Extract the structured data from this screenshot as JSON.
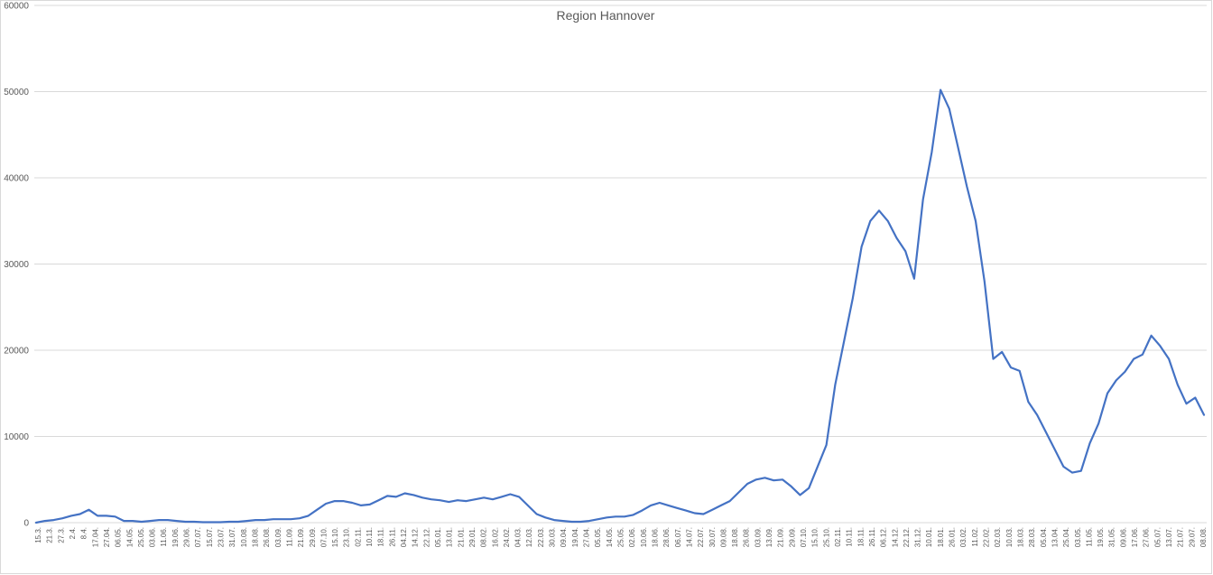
{
  "chart_data": {
    "type": "line",
    "title": "Region Hannover",
    "xlabel": "",
    "ylabel": "",
    "ylim": [
      0,
      60000
    ],
    "y_ticks": [
      "0",
      "10000",
      "20000",
      "30000",
      "40000",
      "50000",
      "60000"
    ],
    "grid": true,
    "legend": "none",
    "colors": {
      "line": "#4472c4",
      "grid": "#d9d9d9",
      "text": "#595959"
    },
    "x_tick_labels": [
      "15.3.",
      "21.3.",
      "27.3.",
      "2.4.",
      "8.4.",
      "17.04.",
      "27.04.",
      "06.05.",
      "14.05.",
      "25.05.",
      "03.06.",
      "11.06.",
      "19.06.",
      "29.06.",
      "07.07.",
      "15.07.",
      "23.07.",
      "31.07.",
      "10.08.",
      "18.08.",
      "26.08.",
      "03.09.",
      "11.09.",
      "21.09.",
      "29.09.",
      "07.10.",
      "15.10.",
      "23.10.",
      "02.11.",
      "10.11.",
      "18.11.",
      "26.11.",
      "04.12.",
      "14.12.",
      "22.12.",
      "05.01.",
      "13.01.",
      "21.01.",
      "29.01.",
      "08.02.",
      "16.02.",
      "24.02.",
      "04.03.",
      "12.03.",
      "22.03.",
      "30.03.",
      "09.04.",
      "19.04.",
      "27.04.",
      "05.05.",
      "14.05.",
      "25.05.",
      "02.06.",
      "10.06.",
      "18.06.",
      "28.06.",
      "06.07.",
      "14.07.",
      "22.07.",
      "30.07.",
      "09.08.",
      "18.08.",
      "26.08.",
      "03.09.",
      "13.09.",
      "21.09.",
      "29.09.",
      "07.10.",
      "15.10.",
      "25.10.",
      "02.11.",
      "10.11.",
      "18.11.",
      "26.11.",
      "06.12.",
      "14.12.",
      "22.12.",
      "31.12.",
      "10.01.",
      "18.01.",
      "26.01.",
      "03.02.",
      "11.02.",
      "22.02.",
      "02.03.",
      "10.03.",
      "18.03.",
      "28.03.",
      "05.04.",
      "13.04.",
      "25.04.",
      "03.05.",
      "11.05.",
      "19.05.",
      "31.05.",
      "09.06.",
      "17.06.",
      "27.06.",
      "05.07.",
      "13.07.",
      "21.07.",
      "29.07.",
      "08.08."
    ],
    "series": [
      {
        "values": [
          0,
          200,
          300,
          500,
          800,
          1000,
          1500,
          800,
          800,
          700,
          200,
          200,
          100,
          200,
          300,
          300,
          200,
          100,
          100,
          50,
          50,
          50,
          100,
          100,
          200,
          300,
          300,
          400,
          400,
          400,
          500,
          800,
          1500,
          2200,
          2500,
          2500,
          2300,
          2000,
          2100,
          2600,
          3100,
          3000,
          3400,
          3200,
          2900,
          2700,
          2600,
          2400,
          2600,
          2500,
          2700,
          2900,
          2700,
          3000,
          3300,
          3000,
          2000,
          1000,
          600,
          300,
          200,
          100,
          100,
          200,
          400,
          600,
          700,
          700,
          900,
          1400,
          2000,
          2300,
          2000,
          1700,
          1400,
          1100,
          1000,
          1500,
          2000,
          2500,
          3500,
          4500,
          5000,
          5200,
          4900,
          5000,
          4200,
          3200,
          4000,
          6500,
          9000,
          16000,
          21000,
          26000,
          32000,
          35000,
          36200,
          35000,
          33000,
          31500,
          28300,
          37500,
          43000,
          50200,
          48000,
          43500,
          39000,
          35000,
          28000,
          19000,
          19800,
          18000,
          17600,
          14000,
          12500,
          10500,
          8500,
          6500,
          5800,
          6000,
          9200,
          11500,
          15000,
          16500,
          17500,
          19000,
          19500,
          21700,
          20500,
          19000,
          16000,
          13800,
          14500,
          12500
        ]
      }
    ]
  }
}
